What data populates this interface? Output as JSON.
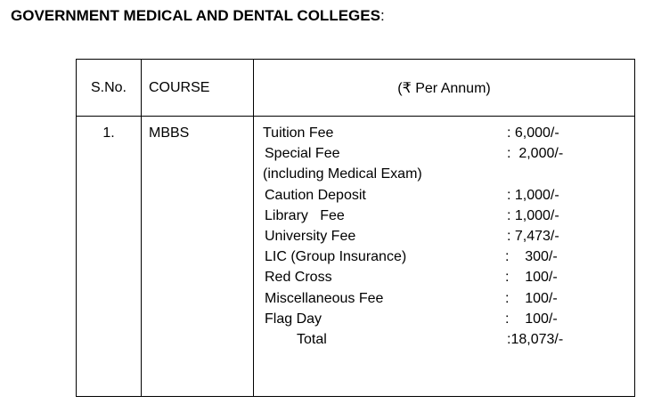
{
  "heading": {
    "title": "GOVERNMENT MEDICAL AND DENTAL COLLEGES",
    "suffix": ":"
  },
  "table": {
    "headers": {
      "sno": "S.No.",
      "course": "COURSE",
      "fee": "(₹ Per Annum)"
    },
    "rows": [
      {
        "sno": "1.",
        "course": "MBBS",
        "items": [
          {
            "label": "Tuition Fee",
            "value": ": 6,000/-"
          },
          {
            "label": "Special Fee",
            "value": ":  2,000/-"
          },
          {
            "label": "(including Medical Exam)",
            "value": ""
          },
          {
            "label": "Caution Deposit",
            "value": ": 1,000/-"
          },
          {
            "label": "Library   Fee",
            "value": ": 1,000/-"
          },
          {
            "label": "University Fee",
            "value": ": 7,473/-"
          },
          {
            "label": "LIC (Group Insurance)",
            "value": ":    300/-"
          },
          {
            "label": "Red Cross",
            "value": ":    100/-"
          },
          {
            "label": "Miscellaneous Fee",
            "value": ":    100/-"
          },
          {
            "label": "Flag Day",
            "value": ":    100/-"
          },
          {
            "label": "Total",
            "value": ":18,073/-"
          }
        ]
      }
    ]
  }
}
